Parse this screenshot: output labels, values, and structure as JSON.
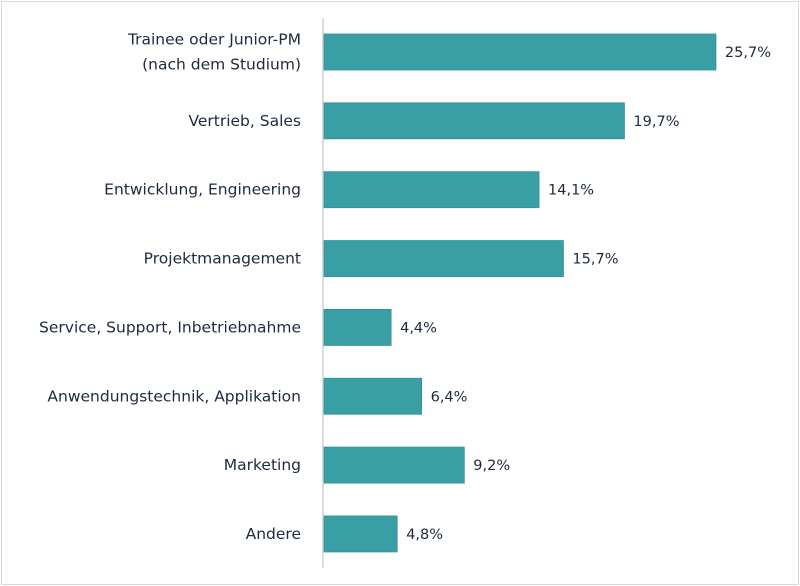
{
  "chart_data": {
    "type": "bar",
    "orientation": "horizontal",
    "title": "",
    "xlabel": "",
    "ylabel": "",
    "categories": [
      [
        "Trainee oder Junior-PM",
        "(nach dem Studium)"
      ],
      [
        "Vertrieb, Sales"
      ],
      [
        "Entwicklung, Engineering"
      ],
      [
        "Projektmanagement"
      ],
      [
        "Service, Support, Inbetriebnahme"
      ],
      [
        "Anwendungstechnik, Applikation"
      ],
      [
        "Marketing"
      ],
      [
        "Andere"
      ]
    ],
    "values": [
      25.7,
      19.7,
      14.1,
      15.7,
      4.4,
      6.4,
      9.2,
      4.8
    ],
    "value_labels": [
      "25,7%",
      "19,7%",
      "14,1%",
      "15,7%",
      "4,4%",
      "6,4%",
      "9,2%",
      "4,8%"
    ],
    "xlim": [
      0,
      30
    ],
    "grid": false,
    "legend": "none",
    "colors": {
      "bar": "#3a9fa5",
      "bar_edge": "#2f9197",
      "text": "#1f2a3c",
      "axis": "#d0d0d0"
    }
  }
}
